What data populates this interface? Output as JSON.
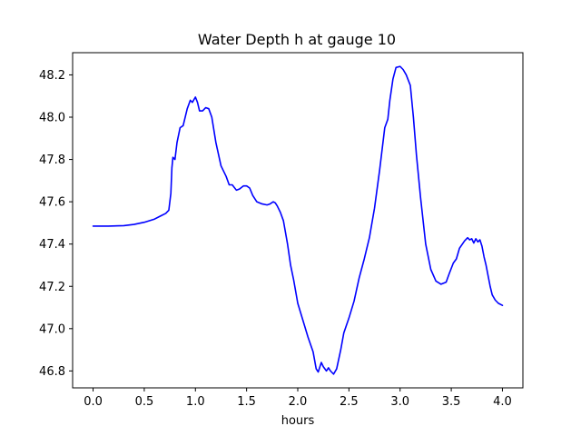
{
  "chart_data": {
    "type": "line",
    "title": "Water Depth h at gauge 10",
    "xlabel": "hours",
    "ylabel": "",
    "xlim": [
      -0.2,
      4.2
    ],
    "ylim": [
      46.72,
      48.305
    ],
    "xticks": [
      {
        "value": 0.0,
        "label": "0.0"
      },
      {
        "value": 0.5,
        "label": "0.5"
      },
      {
        "value": 1.0,
        "label": "1.0"
      },
      {
        "value": 1.5,
        "label": "1.5"
      },
      {
        "value": 2.0,
        "label": "2.0"
      },
      {
        "value": 2.5,
        "label": "2.5"
      },
      {
        "value": 3.0,
        "label": "3.0"
      },
      {
        "value": 3.5,
        "label": "3.5"
      },
      {
        "value": 4.0,
        "label": "4.0"
      }
    ],
    "yticks": [
      {
        "value": 46.8,
        "label": "46.8"
      },
      {
        "value": 47.0,
        "label": "47.0"
      },
      {
        "value": 47.2,
        "label": "47.2"
      },
      {
        "value": 47.4,
        "label": "47.4"
      },
      {
        "value": 47.6,
        "label": "47.6"
      },
      {
        "value": 47.8,
        "label": "47.8"
      },
      {
        "value": 48.0,
        "label": "48.0"
      },
      {
        "value": 48.2,
        "label": "48.2"
      }
    ],
    "grid": false,
    "series": [
      {
        "color": "#0000ff",
        "x": [
          0.0,
          0.15,
          0.3,
          0.4,
          0.5,
          0.6,
          0.66,
          0.71,
          0.74,
          0.76,
          0.77,
          0.78,
          0.8,
          0.82,
          0.85,
          0.88,
          0.92,
          0.95,
          0.97,
          1.0,
          1.02,
          1.04,
          1.07,
          1.1,
          1.13,
          1.16,
          1.2,
          1.25,
          1.3,
          1.33,
          1.36,
          1.4,
          1.43,
          1.47,
          1.5,
          1.53,
          1.56,
          1.6,
          1.65,
          1.7,
          1.73,
          1.76,
          1.78,
          1.8,
          1.83,
          1.86,
          1.9,
          1.93,
          1.96,
          2.0,
          2.05,
          2.1,
          2.15,
          2.18,
          2.2,
          2.23,
          2.25,
          2.28,
          2.3,
          2.32,
          2.35,
          2.38,
          2.42,
          2.45,
          2.5,
          2.55,
          2.6,
          2.65,
          2.7,
          2.75,
          2.8,
          2.85,
          2.88,
          2.9,
          2.93,
          2.96,
          3.0,
          3.03,
          3.06,
          3.1,
          3.13,
          3.16,
          3.2,
          3.25,
          3.3,
          3.35,
          3.4,
          3.45,
          3.48,
          3.52,
          3.55,
          3.58,
          3.63,
          3.66,
          3.68,
          3.7,
          3.72,
          3.74,
          3.76,
          3.78,
          3.8,
          3.82,
          3.84,
          3.86,
          3.88,
          3.9,
          3.93,
          3.96,
          4.0
        ],
        "y": [
          47.485,
          47.485,
          47.487,
          47.493,
          47.503,
          47.518,
          47.533,
          47.545,
          47.56,
          47.64,
          47.76,
          47.81,
          47.8,
          47.88,
          47.95,
          47.96,
          48.04,
          48.08,
          48.07,
          48.095,
          48.07,
          48.03,
          48.03,
          48.045,
          48.04,
          48.0,
          47.88,
          47.77,
          47.72,
          47.68,
          47.68,
          47.655,
          47.66,
          47.675,
          47.675,
          47.665,
          47.63,
          47.6,
          47.59,
          47.585,
          47.59,
          47.6,
          47.595,
          47.58,
          47.55,
          47.51,
          47.4,
          47.3,
          47.23,
          47.12,
          47.04,
          46.96,
          46.89,
          46.81,
          46.795,
          46.84,
          46.82,
          46.8,
          46.815,
          46.8,
          46.785,
          46.81,
          46.9,
          46.98,
          47.05,
          47.13,
          47.24,
          47.33,
          47.43,
          47.57,
          47.75,
          47.95,
          47.99,
          48.08,
          48.18,
          48.235,
          48.24,
          48.225,
          48.2,
          48.15,
          48.0,
          47.82,
          47.62,
          47.4,
          47.28,
          47.225,
          47.21,
          47.22,
          47.26,
          47.31,
          47.33,
          47.38,
          47.415,
          47.43,
          47.42,
          47.425,
          47.405,
          47.425,
          47.41,
          47.42,
          47.39,
          47.34,
          47.3,
          47.25,
          47.2,
          47.16,
          47.135,
          47.12,
          47.11
        ]
      }
    ]
  }
}
